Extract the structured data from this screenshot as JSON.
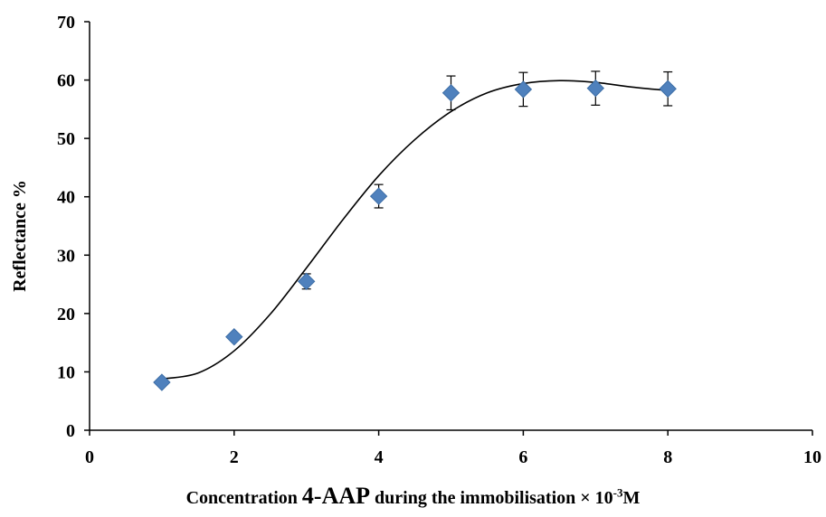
{
  "chart_data": {
    "type": "scatter",
    "title": "",
    "ylabel": "Reflectance %",
    "xlabel": {
      "prefix": "Concentration ",
      "reagent": "4-AAP",
      "middle": " during the immobilisation × 10",
      "exponent": "-3",
      "unit": "M"
    },
    "xlim": [
      0,
      10
    ],
    "ylim": [
      0,
      70
    ],
    "x_ticks": [
      0,
      2,
      4,
      6,
      8,
      10
    ],
    "y_ticks": [
      0,
      10,
      20,
      30,
      40,
      50,
      60,
      70
    ],
    "grid": false,
    "legend": "none",
    "series": [
      {
        "marker": "diamond",
        "color": "#4f81bd",
        "x": [
          1,
          2,
          3,
          4,
          5,
          6,
          7,
          8
        ],
        "y": [
          8.2,
          16.0,
          25.5,
          40.1,
          57.8,
          58.4,
          58.6,
          58.5
        ],
        "error": [
          0.0,
          0.0,
          1.3,
          2.0,
          2.9,
          2.9,
          2.9,
          2.9
        ]
      }
    ],
    "trendline": {
      "type": "polynomial",
      "color": "#000000",
      "x": [
        1,
        1.5,
        2,
        2.5,
        3,
        3.5,
        4,
        4.5,
        5,
        5.5,
        6,
        6.5,
        7,
        7.5,
        8
      ],
      "y": [
        8.8,
        9.8,
        13.6,
        19.9,
        27.8,
        36.0,
        43.6,
        49.8,
        54.6,
        57.8,
        59.4,
        59.9,
        59.6,
        58.8,
        58.2
      ]
    }
  }
}
